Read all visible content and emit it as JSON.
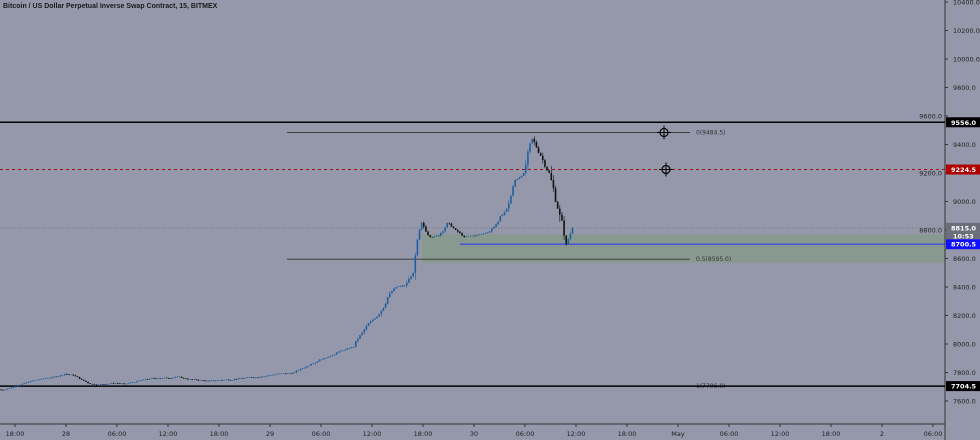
{
  "header": {
    "title": "Bitcoin / US Dollar Perpetual Inverse Swap Contract, 15, BITMEX"
  },
  "colors": {
    "background": "#9598ab",
    "up_candle": "#1f5f9e",
    "down_candle": "#111111",
    "zone": "#869a8c",
    "blue_line": "#2a2aff",
    "red_line": "#a01010"
  },
  "chart_data": {
    "type": "candlestick",
    "interval": "15",
    "ylim": [
      7520,
      10420
    ],
    "y_ticks": [
      "10400.0",
      "10200.0",
      "10000.0",
      "9800.0",
      "9600.0",
      "9400.0",
      "9200.0",
      "9000.0",
      "8800.0",
      "8600.0",
      "8400.0",
      "8200.0",
      "8000.0",
      "7800.0",
      "7600.0"
    ],
    "y_tick_values": [
      10400,
      10200,
      10000,
      9800,
      9600,
      9400,
      9200,
      9000,
      8800,
      8600,
      8400,
      8200,
      8000,
      7800,
      7600
    ],
    "x_ticks": [
      "18:00",
      "28",
      "06:00",
      "12:00",
      "18:00",
      "29",
      "06:00",
      "12:00",
      "18:00",
      "30",
      "06:00",
      "12:00",
      "18:00",
      "May",
      "06:00",
      "12:00",
      "18:00",
      "2",
      "06:00"
    ],
    "x_start": "Apr 27 16:00",
    "hourly_closes": [
      7680,
      7700,
      7720,
      7740,
      7750,
      7760,
      7770,
      7790,
      7780,
      7750,
      7720,
      7715,
      7720,
      7725,
      7720,
      7730,
      7745,
      7755,
      7760,
      7760,
      7770,
      7760,
      7750,
      7745,
      7740,
      7745,
      7750,
      7755,
      7760,
      7765,
      7770,
      7780,
      7790,
      7790,
      7800,
      7830,
      7860,
      7890,
      7910,
      7940,
      7960,
      7980,
      8080,
      8160,
      8210,
      8330,
      8400,
      8410,
      8500,
      8850,
      8750,
      8760,
      8850,
      8800,
      8750,
      8760,
      8770,
      8790,
      8860,
      8950,
      9150,
      9200,
      9440,
      9320,
      9200,
      8950,
      8700,
      8815
    ],
    "horizontal_lines": [
      {
        "price": 9556.0,
        "label": "9556.0",
        "style": "solid",
        "color": "#000000"
      },
      {
        "price": 9224.5,
        "label": "9224.5",
        "style": "dashed",
        "color": "#a01010"
      },
      {
        "price": 8815.0,
        "label": "8815.0",
        "style": "dotted",
        "color": "#777777"
      },
      {
        "price": 8700.5,
        "label": "8700.5",
        "style": "solid",
        "color": "#2a2aff"
      },
      {
        "price": 7704.5,
        "label": "7704.5",
        "style": "solid",
        "color": "#000000"
      }
    ],
    "countdown": "10:53",
    "fib_levels": [
      {
        "level": "0",
        "price": 9484.5,
        "label": "0(9484.5)"
      },
      {
        "level": "0.5",
        "price": 8595.0,
        "label": "0.5(8595.0)"
      },
      {
        "level": "1",
        "price": 7706.0,
        "label": "1(7706.0)"
      }
    ],
    "zone": {
      "top": 8770,
      "bottom": 8570
    }
  }
}
